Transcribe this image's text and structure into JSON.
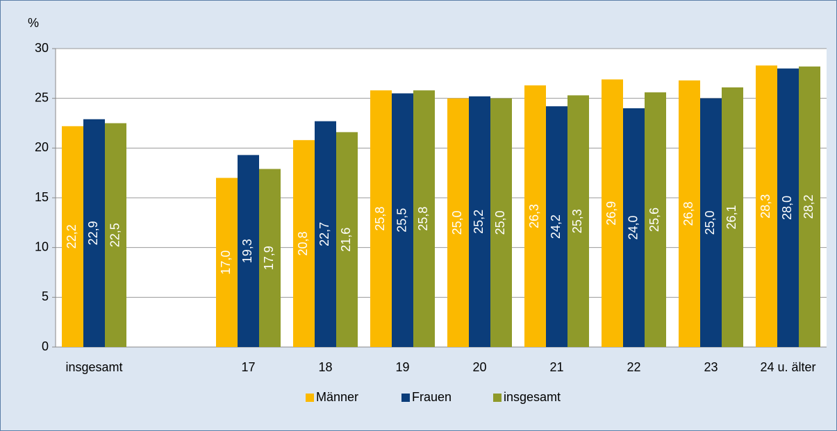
{
  "chart_data": {
    "type": "bar",
    "y_axis_label": "%",
    "categories": [
      "insgesamt",
      null,
      "17",
      "18",
      "19",
      "20",
      "21",
      "22",
      "23",
      "24 u. älter"
    ],
    "series": [
      {
        "name": "Männer",
        "color": "#fbb900",
        "values": [
          22.2,
          null,
          17.0,
          20.8,
          25.8,
          25.0,
          26.3,
          26.9,
          26.8,
          28.3
        ],
        "value_labels": [
          "22,2",
          null,
          "17,0",
          "20,8",
          "25,8",
          "25,0",
          "26,3",
          "26,9",
          "26,8",
          "28,3"
        ]
      },
      {
        "name": "Frauen",
        "color": "#0b3d7a",
        "values": [
          22.9,
          null,
          19.3,
          22.7,
          25.5,
          25.2,
          24.2,
          24.0,
          25.0,
          28.0
        ],
        "value_labels": [
          "22,9",
          null,
          "19,3",
          "22,7",
          "25,5",
          "25,2",
          "24,2",
          "24,0",
          "25,0",
          "28,0"
        ]
      },
      {
        "name": "insgesamt",
        "color": "#8f9a2a",
        "values": [
          22.5,
          null,
          17.9,
          21.6,
          25.8,
          25.0,
          25.3,
          25.6,
          26.1,
          28.2
        ],
        "value_labels": [
          "22,5",
          null,
          "17,9",
          "21,6",
          "25,8",
          "25,0",
          "25,3",
          "25,6",
          "26,1",
          "28,2"
        ]
      }
    ],
    "ylim": [
      0,
      30
    ],
    "yticks": [
      0,
      5,
      10,
      15,
      20,
      25,
      30
    ],
    "grid": true,
    "legend": "bottom"
  }
}
